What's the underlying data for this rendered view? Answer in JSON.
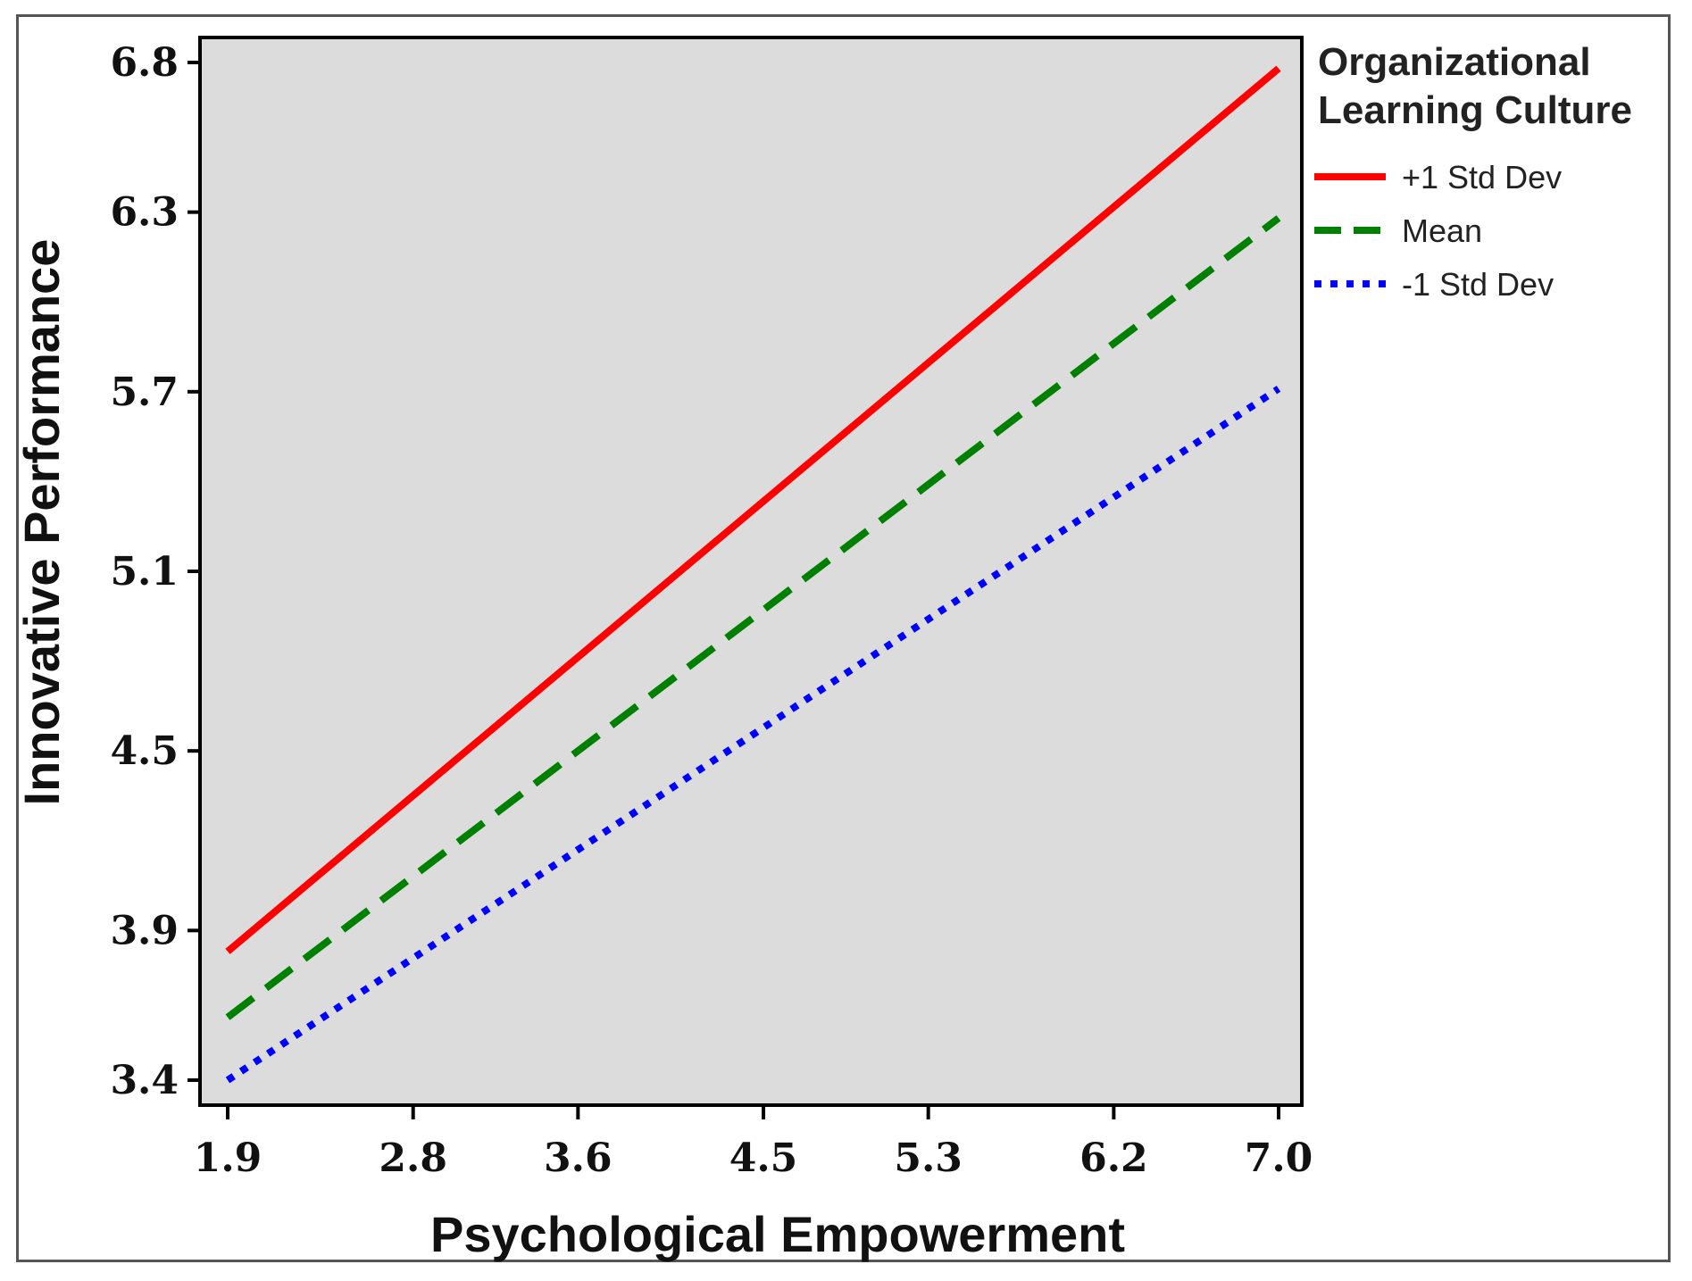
{
  "chart_data": {
    "type": "line",
    "title": "",
    "xlabel": "Psychological Empowerment",
    "ylabel": "Innovative Performance",
    "x_ticks": [
      "1.9",
      "2.8",
      "3.6",
      "4.5",
      "5.3",
      "6.2",
      "7.0"
    ],
    "y_ticks": [
      "3.4",
      "3.9",
      "4.5",
      "5.1",
      "5.7",
      "6.3",
      "6.8"
    ],
    "xlim": [
      1.9,
      7.0
    ],
    "ylim": [
      3.4,
      6.8
    ],
    "grid": false,
    "legend": {
      "title_lines": [
        "Organizational",
        "Learning Culture"
      ],
      "placement": "right"
    },
    "series": [
      {
        "name": "+1 Std Dev",
        "x": [
          1.9,
          7.0
        ],
        "y": [
          3.83,
          6.78
        ],
        "color": "#ff0000",
        "style": "solid"
      },
      {
        "name": "Mean",
        "x": [
          1.9,
          7.0
        ],
        "y": [
          3.61,
          6.28
        ],
        "color": "#008000",
        "style": "dashed"
      },
      {
        "name": "-1 Std Dev",
        "x": [
          1.9,
          7.0
        ],
        "y": [
          3.4,
          5.71
        ],
        "color": "#0000ff",
        "style": "dotted"
      }
    ],
    "plot_background": "#dcdcdc"
  }
}
